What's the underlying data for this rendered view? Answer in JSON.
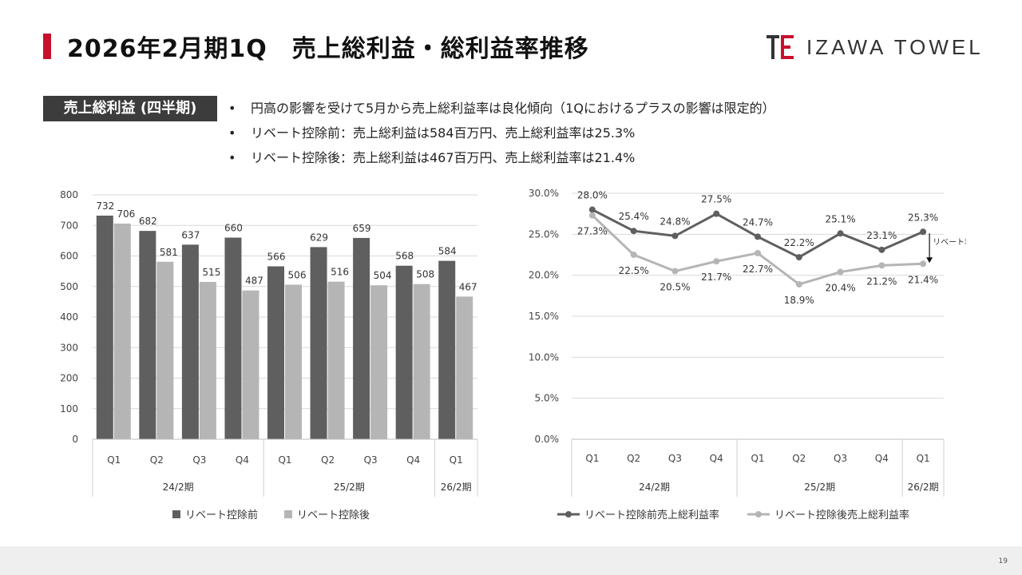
{
  "title": "2026年2月期1Q　売上総利益・総利益率推移",
  "logo": {
    "text": "IZAWA TOWEL"
  },
  "section_tag": "売上総利益 (四半期)",
  "bullets": [
    "円高の影響を受けて5月から売上総利益率は良化傾向（1Qにおけるプラスの影響は限定的）",
    "リベート控除前：売上総利益は584百万円、売上総利益率は25.3%",
    "リベート控除後：売上総利益は467百万円、売上総利益率は21.4%"
  ],
  "page_number": "19",
  "colors": {
    "accent": "#c8102e",
    "series_dark": "#5f5f5f",
    "series_light": "#b5b5b5"
  },
  "chart_data": [
    {
      "type": "bar",
      "categories": [
        "Q1",
        "Q2",
        "Q3",
        "Q4",
        "Q1",
        "Q2",
        "Q3",
        "Q4",
        "Q1"
      ],
      "groups": [
        {
          "label": "24/2期",
          "count": 4
        },
        {
          "label": "25/2期",
          "count": 4
        },
        {
          "label": "26/2期",
          "count": 1
        }
      ],
      "series": [
        {
          "name": "リベート控除前",
          "values": [
            732,
            682,
            637,
            660,
            566,
            629,
            659,
            568,
            584
          ]
        },
        {
          "name": "リベート控除後",
          "values": [
            706,
            581,
            515,
            487,
            506,
            516,
            504,
            508,
            467
          ]
        }
      ],
      "ylim": [
        0,
        800
      ],
      "yticks": [
        "0",
        "100",
        "200",
        "300",
        "400",
        "500",
        "600",
        "700",
        "800"
      ],
      "grid": true,
      "legend": "bottom"
    },
    {
      "type": "line",
      "categories": [
        "Q1",
        "Q2",
        "Q3",
        "Q4",
        "Q1",
        "Q2",
        "Q3",
        "Q4",
        "Q1"
      ],
      "groups": [
        {
          "label": "24/2期",
          "count": 4
        },
        {
          "label": "25/2期",
          "count": 4
        },
        {
          "label": "26/2期",
          "count": 1
        }
      ],
      "series": [
        {
          "name": "リベート控除前売上総利益率",
          "values": [
            28.0,
            25.4,
            24.8,
            27.5,
            24.7,
            22.2,
            25.1,
            23.1,
            25.3
          ],
          "labels": [
            "28.0%",
            "25.4%",
            "24.8%",
            "27.5%",
            "24.7%",
            "22.2%",
            "25.1%",
            "23.1%",
            "25.3%"
          ]
        },
        {
          "name": "リベート控除後売上総利益率",
          "values": [
            27.3,
            22.5,
            20.5,
            21.7,
            22.7,
            18.9,
            20.4,
            21.2,
            21.4
          ],
          "labels": [
            "27.3%",
            "22.5%",
            "20.5%",
            "21.7%",
            "22.7%",
            "18.9%",
            "20.4%",
            "21.2%",
            "21.4%"
          ]
        }
      ],
      "ylim": [
        0,
        30
      ],
      "yticks": [
        "0.0%",
        "5.0%",
        "10.0%",
        "15.0%",
        "20.0%",
        "25.0%",
        "30.0%"
      ],
      "annotation": "リベート増加",
      "grid": true,
      "legend": "bottom"
    }
  ]
}
